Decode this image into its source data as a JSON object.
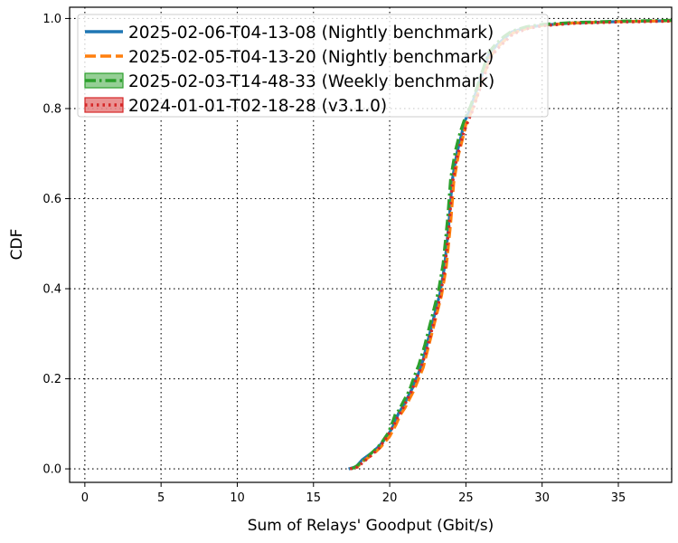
{
  "chart_data": {
    "type": "line",
    "title": "",
    "xlabel": "Sum of Relays' Goodput (Gbit/s)",
    "ylabel": "CDF",
    "xlim": [
      -1,
      38.5
    ],
    "ylim": [
      -0.03,
      1.025
    ],
    "x_ticks": [
      0,
      5,
      10,
      15,
      20,
      25,
      30,
      35
    ],
    "y_ticks": [
      0.0,
      0.2,
      0.4,
      0.6,
      0.8,
      1.0
    ],
    "x_tick_labels": [
      "0",
      "5",
      "10",
      "15",
      "20",
      "25",
      "30",
      "35"
    ],
    "y_tick_labels": [
      "0.0",
      "0.2",
      "0.4",
      "0.6",
      "0.8",
      "1.0"
    ],
    "grid": true,
    "legend_position": "top-left",
    "series": [
      {
        "name": "2025-02-06-T04-13-08 (Nightly benchmark)",
        "color": "#1f77b4",
        "dash": "solid",
        "x": [
          17.3,
          17.8,
          18.2,
          18.8,
          19.3,
          19.9,
          20.3,
          20.6,
          20.9,
          21.2,
          21.5,
          21.8,
          22.1,
          22.4,
          22.7,
          23.0,
          23.3,
          23.6,
          23.9,
          24.1,
          24.4,
          24.7,
          24.9,
          25.1,
          25.3,
          25.6,
          25.9,
          26.2,
          26.5,
          27.0,
          27.5,
          28.0,
          29.0,
          30.0,
          32.0,
          35.0,
          38.5
        ],
        "y": [
          0.0,
          0.005,
          0.02,
          0.035,
          0.05,
          0.075,
          0.1,
          0.125,
          0.14,
          0.16,
          0.18,
          0.205,
          0.23,
          0.27,
          0.31,
          0.35,
          0.39,
          0.45,
          0.55,
          0.64,
          0.7,
          0.74,
          0.77,
          0.785,
          0.8,
          0.83,
          0.86,
          0.89,
          0.92,
          0.94,
          0.955,
          0.97,
          0.98,
          0.985,
          0.99,
          0.993,
          0.995
        ]
      },
      {
        "name": "2025-02-05-T04-13-20 (Nightly benchmark)",
        "color": "#ff7f0e",
        "dash": "dashed",
        "x": [
          17.4,
          17.9,
          18.3,
          18.9,
          19.4,
          20.0,
          20.4,
          20.7,
          21.0,
          21.3,
          21.6,
          21.9,
          22.2,
          22.5,
          22.8,
          23.1,
          23.4,
          23.7,
          24.0,
          24.2,
          24.5,
          24.8,
          25.0,
          25.2,
          25.4,
          25.7,
          26.0,
          26.3,
          26.6,
          27.1,
          27.6,
          28.1,
          29.1,
          30.1,
          32.0,
          35.0,
          38.5
        ],
        "y": [
          0.0,
          0.005,
          0.018,
          0.032,
          0.048,
          0.072,
          0.097,
          0.12,
          0.135,
          0.155,
          0.175,
          0.2,
          0.225,
          0.265,
          0.305,
          0.345,
          0.385,
          0.445,
          0.545,
          0.635,
          0.695,
          0.735,
          0.765,
          0.78,
          0.795,
          0.825,
          0.855,
          0.885,
          0.915,
          0.937,
          0.953,
          0.968,
          0.979,
          0.985,
          0.99,
          0.993,
          0.995
        ]
      },
      {
        "name": "2025-02-03-T14-48-33 (Weekly benchmark)",
        "color": "#2ca02c",
        "dash": "dashdot",
        "x": [
          17.5,
          17.9,
          18.4,
          18.9,
          19.4,
          19.9,
          20.2,
          20.4,
          20.6,
          20.9,
          21.3,
          21.6,
          21.9,
          22.3,
          22.6,
          22.9,
          23.2,
          23.5,
          23.8,
          24.0,
          24.3,
          24.6,
          24.9,
          25.1,
          25.3,
          25.6,
          25.9,
          26.2,
          26.5,
          27.0,
          27.5,
          28.0,
          29.0,
          30.0,
          32.0,
          35.0,
          38.5
        ],
        "y": [
          0.0,
          0.008,
          0.022,
          0.038,
          0.055,
          0.08,
          0.105,
          0.125,
          0.13,
          0.15,
          0.175,
          0.205,
          0.23,
          0.275,
          0.315,
          0.355,
          0.395,
          0.455,
          0.555,
          0.645,
          0.705,
          0.745,
          0.775,
          0.79,
          0.805,
          0.835,
          0.865,
          0.895,
          0.925,
          0.945,
          0.96,
          0.972,
          0.982,
          0.987,
          0.991,
          0.994,
          0.996
        ]
      },
      {
        "name": "2024-01-01-T02-18-28 (v3.1.0)",
        "color": "#d62728",
        "dash": "dotted",
        "x": [
          17.4,
          17.9,
          18.3,
          18.8,
          19.3,
          19.8,
          20.2,
          20.5,
          20.8,
          21.1,
          21.4,
          21.7,
          22.0,
          22.4,
          22.7,
          23.0,
          23.3,
          23.6,
          23.9,
          24.1,
          24.4,
          24.7,
          25.0,
          25.2,
          25.4,
          25.7,
          26.0,
          26.3,
          26.6,
          27.1,
          27.6,
          28.1,
          29.1,
          30.1,
          32.0,
          35.0,
          38.5
        ],
        "y": [
          0.0,
          0.004,
          0.016,
          0.03,
          0.046,
          0.07,
          0.092,
          0.113,
          0.13,
          0.15,
          0.17,
          0.195,
          0.22,
          0.26,
          0.3,
          0.34,
          0.38,
          0.44,
          0.54,
          0.63,
          0.69,
          0.73,
          0.76,
          0.777,
          0.792,
          0.822,
          0.852,
          0.882,
          0.912,
          0.934,
          0.95,
          0.966,
          0.978,
          0.984,
          0.989,
          0.992,
          0.994
        ]
      }
    ]
  }
}
